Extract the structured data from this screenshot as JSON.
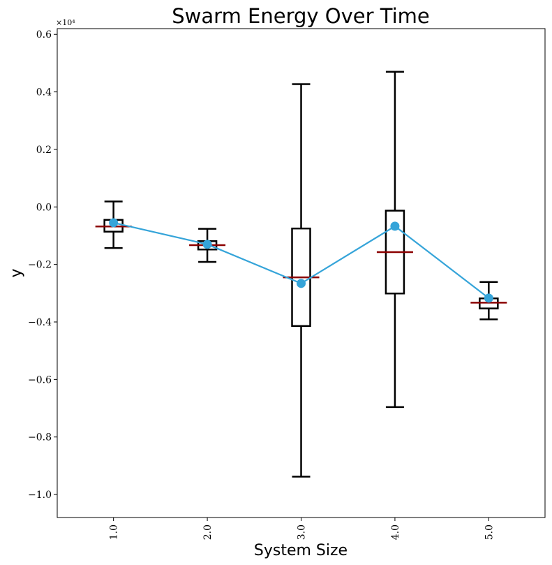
{
  "chart_data": {
    "type": "box",
    "title": "Swarm Energy Over Time",
    "xlabel": "System Size",
    "ylabel": "y",
    "y_offset_label": "×10⁴",
    "y_scale_factor": 10000,
    "xlim": [
      0.4,
      5.6
    ],
    "ylim": [
      -10800,
      6200
    ],
    "x_ticks": [
      1.0,
      2.0,
      3.0,
      4.0,
      5.0
    ],
    "x_tick_labels": [
      "1.0",
      "2.0",
      "3.0",
      "4.0",
      "5.0"
    ],
    "y_ticks": [
      -10000,
      -8000,
      -6000,
      -4000,
      -2000,
      0,
      2000,
      4000,
      6000
    ],
    "y_tick_labels": [
      "−1.0",
      "−0.8",
      "−0.6",
      "−0.4",
      "−0.2",
      "0.0",
      "0.2",
      "0.4",
      "0.6"
    ],
    "grid": false,
    "legend": "none",
    "boxes": [
      {
        "x": 1.0,
        "whisker_low": -1430,
        "q1": -860,
        "median": -680,
        "q3": -450,
        "whisker_high": 190,
        "mean": -550
      },
      {
        "x": 2.0,
        "whisker_low": -1910,
        "q1": -1480,
        "median": -1330,
        "q3": -1190,
        "whisker_high": -760,
        "mean": -1300
      },
      {
        "x": 3.0,
        "whisker_low": -9380,
        "q1": -4140,
        "median": -2450,
        "q3": -750,
        "whisker_high": 4270,
        "mean": -2660
      },
      {
        "x": 4.0,
        "whisker_low": -6960,
        "q1": -3010,
        "median": -1570,
        "q3": -130,
        "whisker_high": 4700,
        "mean": -670
      },
      {
        "x": 5.0,
        "whisker_low": -3910,
        "q1": -3530,
        "median": -3330,
        "q3": -3180,
        "whisker_high": -2610,
        "mean": -3170
      }
    ],
    "colors": {
      "box": "#000000",
      "median": "#8b0000",
      "mean_line": "#35a4d9",
      "mean_marker": "#35a4d9",
      "axes": "#000000"
    }
  }
}
